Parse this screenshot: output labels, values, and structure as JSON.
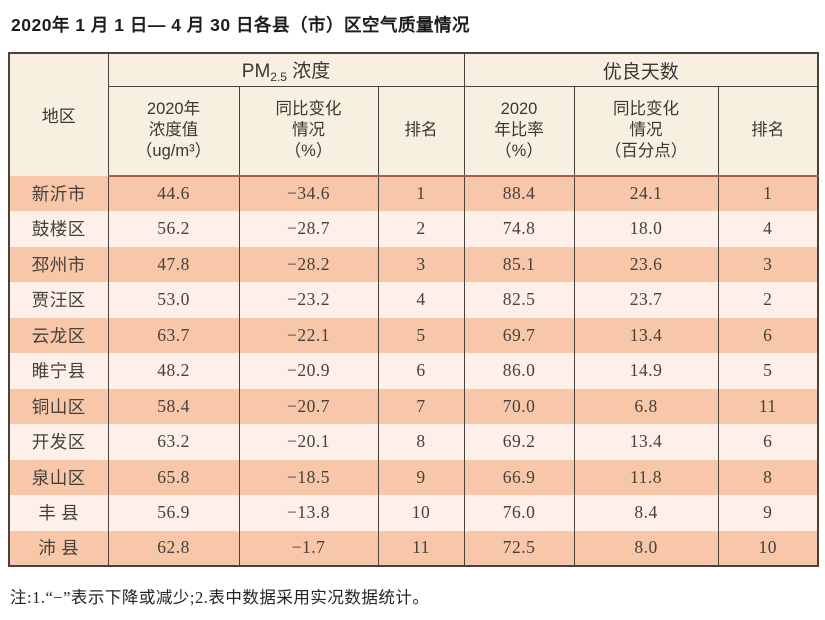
{
  "page": {
    "title": "2020年 1 月 1 日— 4 月 30 日各县（市）区空气质量情况",
    "footnote": "注:1.“−”表示下降或减少;2.表中数据采用实况数据统计。"
  },
  "table": {
    "region_header": "地区",
    "group_pm": {
      "prefix": "PM",
      "sub": "2.5",
      "suffix": " 浓度"
    },
    "group_days": "优良天数",
    "sub_headers": {
      "pm_value": "2020年\n浓度值\n（ug/m³）",
      "pm_change": "同比变化\n情况\n（%）",
      "pm_rank": "排名",
      "days_ratio": "2020\n年比率\n（%）",
      "days_change": "同比变化\n情况\n（百分点）",
      "days_rank": "排名"
    },
    "column_keys": [
      "region",
      "pm_value",
      "pm_change",
      "pm_rank",
      "days_ratio",
      "days_change",
      "days_rank"
    ],
    "rows": [
      {
        "region": "新沂市",
        "pm_value": "44.6",
        "pm_change": "−34.6",
        "pm_rank": "1",
        "days_ratio": "88.4",
        "days_change": "24.1",
        "days_rank": "1"
      },
      {
        "region": "鼓楼区",
        "pm_value": "56.2",
        "pm_change": "−28.7",
        "pm_rank": "2",
        "days_ratio": "74.8",
        "days_change": "18.0",
        "days_rank": "4"
      },
      {
        "region": "邳州市",
        "pm_value": "47.8",
        "pm_change": "−28.2",
        "pm_rank": "3",
        "days_ratio": "85.1",
        "days_change": "23.6",
        "days_rank": "3"
      },
      {
        "region": "贾汪区",
        "pm_value": "53.0",
        "pm_change": "−23.2",
        "pm_rank": "4",
        "days_ratio": "82.5",
        "days_change": "23.7",
        "days_rank": "2"
      },
      {
        "region": "云龙区",
        "pm_value": "63.7",
        "pm_change": "−22.1",
        "pm_rank": "5",
        "days_ratio": "69.7",
        "days_change": "13.4",
        "days_rank": "6"
      },
      {
        "region": "睢宁县",
        "pm_value": "48.2",
        "pm_change": "−20.9",
        "pm_rank": "6",
        "days_ratio": "86.0",
        "days_change": "14.9",
        "days_rank": "5"
      },
      {
        "region": "铜山区",
        "pm_value": "58.4",
        "pm_change": "−20.7",
        "pm_rank": "7",
        "days_ratio": "70.0",
        "days_change": "6.8",
        "days_rank": "11"
      },
      {
        "region": "开发区",
        "pm_value": "63.2",
        "pm_change": "−20.1",
        "pm_rank": "8",
        "days_ratio": "69.2",
        "days_change": "13.4",
        "days_rank": "6"
      },
      {
        "region": "泉山区",
        "pm_value": "65.8",
        "pm_change": "−18.5",
        "pm_rank": "9",
        "days_ratio": "66.9",
        "days_change": "11.8",
        "days_rank": "8"
      },
      {
        "region": "丰 县",
        "pm_value": "56.9",
        "pm_change": "−13.8",
        "pm_rank": "10",
        "days_ratio": "76.0",
        "days_change": "8.4",
        "days_rank": "9"
      },
      {
        "region": "沛 县",
        "pm_value": "62.8",
        "pm_change": "−1.7",
        "pm_rank": "11",
        "days_ratio": "72.5",
        "days_change": "8.0",
        "days_rank": "10"
      }
    ]
  },
  "colors": {
    "row_dark": "#f8c6a8",
    "row_light": "#fcf0e8",
    "header_bg": "#f8efe1",
    "grid_line": "#4a423c",
    "header_separator": "#a2604a",
    "text": "#46413d"
  }
}
